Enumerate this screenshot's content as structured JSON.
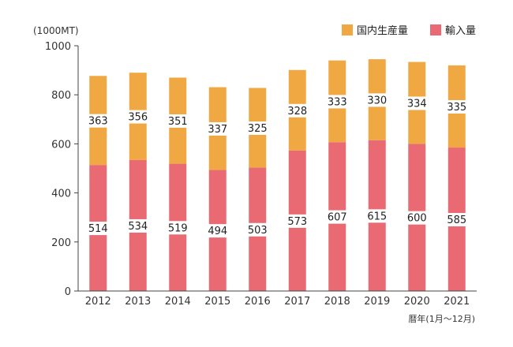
{
  "chart_data": {
    "type": "bar",
    "stacked": true,
    "unit_label": "(1000MT)",
    "xlabel": "暦年(1月～12月)",
    "ylabel": "",
    "ylim": [
      0,
      1000
    ],
    "yticks": [
      0,
      200,
      400,
      600,
      800,
      1000
    ],
    "grid": false,
    "legend": "top-right",
    "categories": [
      "2012",
      "2013",
      "2014",
      "2015",
      "2016",
      "2017",
      "2018",
      "2019",
      "2020",
      "2021"
    ],
    "series": [
      {
        "name": "輸入量",
        "color": "#e96a72",
        "values": [
          514,
          534,
          519,
          494,
          503,
          573,
          607,
          615,
          600,
          585
        ]
      },
      {
        "name": "国内生産量",
        "color": "#f0a843",
        "values": [
          363,
          356,
          351,
          337,
          325,
          328,
          333,
          330,
          334,
          335
        ]
      }
    ],
    "legend_order": [
      "国内生産量",
      "輸入量"
    ]
  }
}
